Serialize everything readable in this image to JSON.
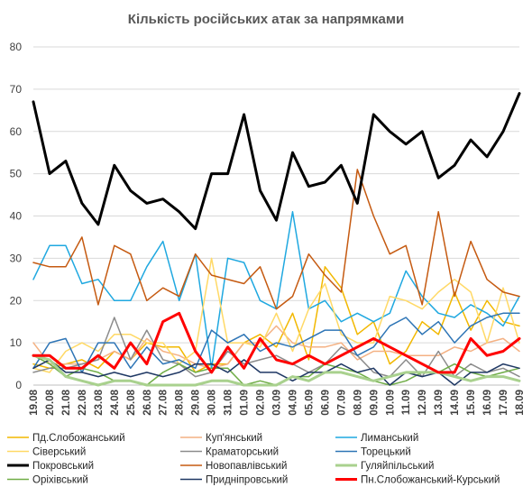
{
  "chart_data": {
    "type": "line",
    "title": "Кількість російських атак за напрямками",
    "xlabel": "",
    "ylabel": "",
    "ylim": [
      0,
      80
    ],
    "yticks": [
      0,
      10,
      20,
      30,
      40,
      50,
      60,
      70,
      80
    ],
    "grid": true,
    "legend_position": "bottom",
    "categories": [
      "19.08",
      "20.08",
      "21.08",
      "22.08",
      "23.08",
      "24.08",
      "25.08",
      "26.08",
      "27.08",
      "28.08",
      "29.08",
      "30.08",
      "31.08",
      "01.09",
      "02.09",
      "03.09",
      "04.09",
      "05.09",
      "06.09",
      "07.09",
      "08.09",
      "09.09",
      "10.09",
      "11.09",
      "12.09",
      "13.09",
      "14.09",
      "15.09",
      "16.09",
      "17.09",
      "18.09"
    ],
    "series": [
      {
        "name": "Пд.Слобожанський",
        "color": "#f2b800",
        "width": 1.5,
        "values": [
          5,
          4,
          5,
          6,
          4,
          8,
          6,
          10,
          9,
          9,
          3,
          5,
          5,
          10,
          12,
          9,
          17,
          6,
          28,
          23,
          12,
          15,
          5,
          8,
          15,
          12,
          22,
          13,
          20,
          15,
          14
        ]
      },
      {
        "name": "Куп'янський",
        "color": "#f4b183",
        "width": 1.5,
        "values": [
          10,
          5,
          5,
          5,
          6,
          8,
          6,
          11,
          8,
          7,
          5,
          4,
          5,
          10,
          10,
          14,
          10,
          9,
          9,
          10,
          6,
          8,
          8,
          7,
          7,
          7,
          9,
          8,
          10,
          11,
          8
        ]
      },
      {
        "name": "Лиманський",
        "color": "#1fa8e0",
        "width": 1.5,
        "values": [
          25,
          33,
          33,
          24,
          25,
          20,
          20,
          28,
          34,
          20,
          31,
          4,
          30,
          29,
          20,
          18,
          41,
          18,
          20,
          15,
          17,
          15,
          17,
          27,
          21,
          17,
          16,
          19,
          17,
          14,
          21
        ]
      },
      {
        "name": "Сіверський",
        "color": "#ffd966",
        "width": 1.5,
        "values": [
          4,
          3,
          8,
          10,
          8,
          12,
          12,
          10,
          10,
          5,
          8,
          30,
          10,
          10,
          9,
          17,
          8,
          18,
          24,
          12,
          10,
          10,
          21,
          20,
          18,
          22,
          25,
          22,
          10,
          23,
          10
        ]
      },
      {
        "name": "Краматорський",
        "color": "#8c8c8c",
        "width": 1.5,
        "values": [
          3,
          4,
          4,
          5,
          6,
          16,
          6,
          13,
          6,
          5,
          2,
          3,
          8,
          5,
          6,
          7,
          5,
          3,
          5,
          9,
          7,
          3,
          2,
          6,
          2,
          8,
          2,
          5,
          3,
          4,
          2
        ]
      },
      {
        "name": "Торецький",
        "color": "#2e75b6",
        "width": 1.5,
        "values": [
          4,
          10,
          11,
          3,
          10,
          10,
          4,
          9,
          5,
          6,
          4,
          13,
          10,
          12,
          8,
          10,
          9,
          11,
          13,
          13,
          7,
          9,
          14,
          16,
          12,
          15,
          10,
          14,
          16,
          17,
          17
        ]
      },
      {
        "name": "Покровський",
        "color": "#000000",
        "width": 3,
        "values": [
          67,
          50,
          53,
          43,
          38,
          52,
          46,
          43,
          44,
          41,
          37,
          50,
          50,
          64,
          46,
          39,
          55,
          47,
          48,
          52,
          43,
          64,
          60,
          57,
          60,
          49,
          52,
          58,
          54,
          60,
          69
        ]
      },
      {
        "name": "Новопавлівський",
        "color": "#c55a11",
        "width": 1.5,
        "values": [
          29,
          28,
          28,
          35,
          19,
          33,
          31,
          20,
          23,
          21,
          31,
          26,
          25,
          24,
          28,
          18,
          21,
          31,
          26,
          22,
          51,
          40,
          31,
          33,
          19,
          41,
          21,
          34,
          25,
          22,
          21
        ]
      },
      {
        "name": "Гуляйпільський",
        "color": "#a9d18e",
        "width": 3,
        "values": [
          7,
          6,
          2,
          1,
          0,
          1,
          1,
          0,
          0,
          0,
          0,
          1,
          1,
          0,
          0,
          0,
          2,
          1,
          3,
          3,
          2,
          1,
          2,
          3,
          3,
          3,
          2,
          1,
          2,
          2,
          1
        ]
      },
      {
        "name": "Оріхівський",
        "color": "#70ad47",
        "width": 1.5,
        "values": [
          7,
          5,
          2,
          4,
          3,
          1,
          1,
          0,
          3,
          5,
          3,
          4,
          4,
          0,
          1,
          0,
          2,
          2,
          5,
          4,
          3,
          1,
          0,
          1,
          3,
          3,
          5,
          3,
          2,
          3,
          4
        ]
      },
      {
        "name": "Придніпровський",
        "color": "#1f3864",
        "width": 1.5,
        "values": [
          4,
          6,
          3,
          3,
          2,
          3,
          2,
          3,
          2,
          3,
          5,
          5,
          3,
          6,
          3,
          3,
          1,
          3,
          3,
          5,
          3,
          4,
          0,
          3,
          2,
          3,
          0,
          3,
          3,
          5,
          4
        ]
      },
      {
        "name": "Пн.Слобожанський-Курський",
        "color": "#ff0000",
        "width": 3,
        "values": [
          7,
          7,
          4,
          4,
          7,
          4,
          10,
          5,
          15,
          17,
          8,
          3,
          9,
          4,
          11,
          6,
          5,
          7,
          5,
          7,
          9,
          11,
          9,
          7,
          5,
          3,
          3,
          11,
          7,
          8,
          11
        ]
      }
    ]
  }
}
